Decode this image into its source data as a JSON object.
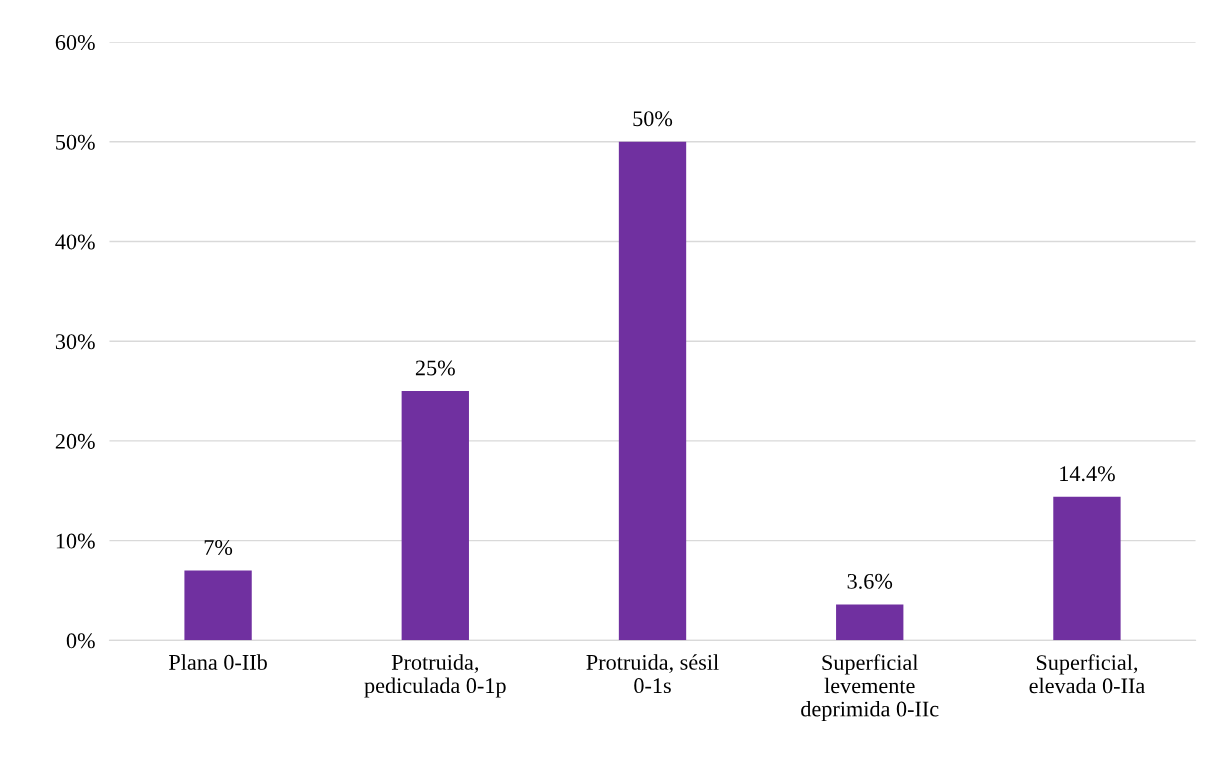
{
  "chart_data": {
    "type": "bar",
    "categories": [
      "Plana 0-IIb",
      "Protruida,\npediculada 0-1p",
      "Protruida, sésil\n0-1s",
      "Superficial\nlevemente\ndeprimida 0-IIc",
      "Superficial,\nelevada 0-IIa"
    ],
    "values": [
      7,
      25,
      50,
      3.6,
      14.4
    ],
    "value_labels": [
      "7%",
      "25%",
      "50%",
      "3.6%",
      "14.4%"
    ],
    "color": "#7030a0",
    "ylim": [
      0,
      60
    ],
    "yticks": [
      {
        "value": 0,
        "label": "0%"
      },
      {
        "value": 10,
        "label": "10%"
      },
      {
        "value": 20,
        "label": "20%"
      },
      {
        "value": 30,
        "label": "30%"
      },
      {
        "value": 40,
        "label": "40%"
      },
      {
        "value": 50,
        "label": "50%"
      },
      {
        "value": 60,
        "label": "60%"
      }
    ],
    "grid": "y"
  }
}
